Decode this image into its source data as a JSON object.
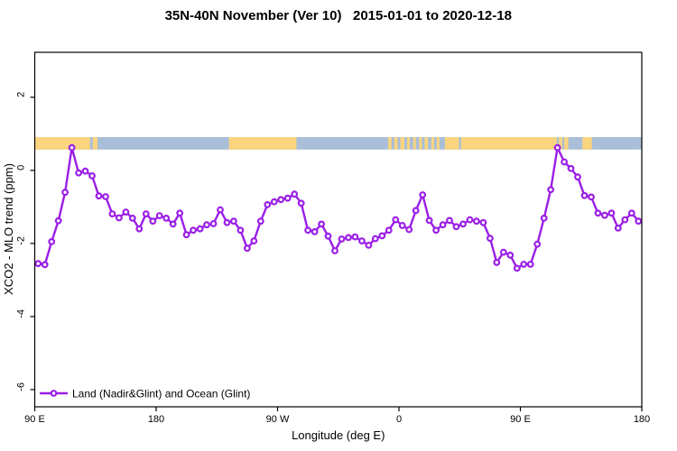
{
  "chart_data": {
    "type": "line",
    "title": "35N-40N November (Ver 10)   2015-01-01 to 2020-12-18",
    "xlabel": "Longitude (deg E)",
    "ylabel": "XCO2 - MLO trend (ppm)",
    "xlim": [
      90,
      540
    ],
    "ylim": [
      -6.47,
      3.23
    ],
    "grid": false,
    "x_ticks": [
      {
        "pos": 90,
        "label": "90 E"
      },
      {
        "pos": 180,
        "label": "180"
      },
      {
        "pos": 270,
        "label": "90 W"
      },
      {
        "pos": 360,
        "label": "0"
      },
      {
        "pos": 450,
        "label": "90 E"
      },
      {
        "pos": 540,
        "label": "180"
      }
    ],
    "y_ticks": [
      {
        "pos": 2,
        "label": "2"
      },
      {
        "pos": 0,
        "label": "0"
      },
      {
        "pos": -2,
        "label": "-2"
      },
      {
        "pos": -4,
        "label": "-4"
      },
      {
        "pos": -6,
        "label": "-6"
      }
    ],
    "legend": {
      "label": "Land (Nadir&Glint) and Ocean (Glint)",
      "position": "bottom-left",
      "marker": "open-circle-on-line"
    },
    "series_color": "#9A1EE6",
    "marker_fill": "#ffffff",
    "band": {
      "description": "land/ocean strip along 35N-40N",
      "y_range": [
        0.57,
        0.91
      ],
      "ocean_color": "#A9BED8",
      "land_color": "#FAD47F",
      "land_segments": [
        [
          90,
          131
        ],
        [
          133,
          136.5
        ],
        [
          234,
          284
        ],
        [
          352,
          354.5
        ],
        [
          356.5,
          359
        ],
        [
          361,
          364
        ],
        [
          366,
          368
        ],
        [
          370.5,
          372.5
        ],
        [
          375,
          377
        ],
        [
          379,
          381.5
        ],
        [
          384,
          386
        ],
        [
          388,
          390
        ],
        [
          394,
          404.5
        ],
        [
          406,
          477
        ],
        [
          478.5,
          481
        ],
        [
          482.5,
          485.5
        ],
        [
          496,
          503
        ]
      ]
    },
    "points": {
      "lon_plot_start": 92.5,
      "lon_plot_step": 5,
      "values": [
        -2.55,
        -2.58,
        -1.95,
        -1.38,
        -0.6,
        0.62,
        -0.07,
        -0.02,
        -0.15,
        -0.7,
        -0.72,
        -1.19,
        -1.3,
        -1.14,
        -1.31,
        -1.6,
        -1.19,
        -1.39,
        -1.24,
        -1.31,
        -1.47,
        -1.17,
        -1.76,
        -1.64,
        -1.6,
        -1.49,
        -1.46,
        -1.08,
        -1.43,
        -1.39,
        -1.64,
        -2.13,
        -1.93,
        -1.39,
        -0.94,
        -0.86,
        -0.8,
        -0.76,
        -0.65,
        -0.9,
        -1.64,
        -1.68,
        -1.47,
        -1.8,
        -2.2,
        -1.88,
        -1.84,
        -1.82,
        -1.93,
        -2.05,
        -1.87,
        -1.79,
        -1.64,
        -1.35,
        -1.51,
        -1.62,
        -1.1,
        -0.67,
        -1.37,
        -1.64,
        -1.49,
        -1.37,
        -1.54,
        -1.47,
        -1.35,
        -1.39,
        -1.43,
        -1.86,
        -2.52,
        -2.24,
        -2.32,
        -2.68,
        -2.57,
        -2.57,
        -2.02,
        -1.31,
        -0.53,
        0.62,
        0.23,
        0.05,
        -0.18,
        -0.69,
        -0.73,
        -1.17,
        -1.23,
        -1.17,
        -1.58,
        -1.35,
        -1.17,
        -1.39
      ]
    }
  }
}
